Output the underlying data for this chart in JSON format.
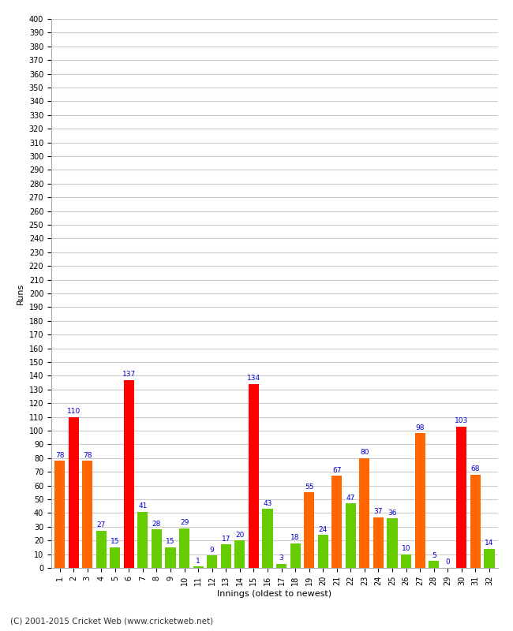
{
  "innings": [
    1,
    2,
    3,
    4,
    5,
    6,
    7,
    8,
    9,
    10,
    11,
    12,
    13,
    14,
    15,
    16,
    17,
    18,
    19,
    20,
    21,
    22,
    23,
    24,
    25,
    26,
    27,
    28,
    29,
    30,
    31,
    32
  ],
  "values": [
    78,
    110,
    78,
    27,
    15,
    137,
    41,
    28,
    15,
    29,
    1,
    9,
    17,
    20,
    134,
    43,
    3,
    18,
    55,
    24,
    67,
    47,
    80,
    37,
    36,
    10,
    98,
    5,
    0,
    103,
    68,
    14
  ],
  "colors": [
    "#ff6600",
    "#ff0000",
    "#ff6600",
    "#66cc00",
    "#66cc00",
    "#ff0000",
    "#66cc00",
    "#66cc00",
    "#66cc00",
    "#66cc00",
    "#66cc00",
    "#66cc00",
    "#66cc00",
    "#66cc00",
    "#ff0000",
    "#66cc00",
    "#66cc00",
    "#66cc00",
    "#ff6600",
    "#66cc00",
    "#ff6600",
    "#66cc00",
    "#ff6600",
    "#ff6600",
    "#66cc00",
    "#66cc00",
    "#ff6600",
    "#66cc00",
    "#66cc00",
    "#ff0000",
    "#ff6600",
    "#66cc00"
  ],
  "xlabel": "Innings (oldest to newest)",
  "ylabel": "Runs",
  "ylim": [
    0,
    400
  ],
  "yticks": [
    0,
    10,
    20,
    30,
    40,
    50,
    60,
    70,
    80,
    90,
    100,
    110,
    120,
    130,
    140,
    150,
    160,
    170,
    180,
    190,
    200,
    210,
    220,
    230,
    240,
    250,
    260,
    270,
    280,
    290,
    300,
    310,
    320,
    330,
    340,
    350,
    360,
    370,
    380,
    390,
    400
  ],
  "footer": "(C) 2001-2015 Cricket Web (www.cricketweb.net)",
  "bg_color": "#ffffff",
  "grid_color": "#cccccc",
  "label_color": "#0000cc",
  "bar_width": 0.75
}
